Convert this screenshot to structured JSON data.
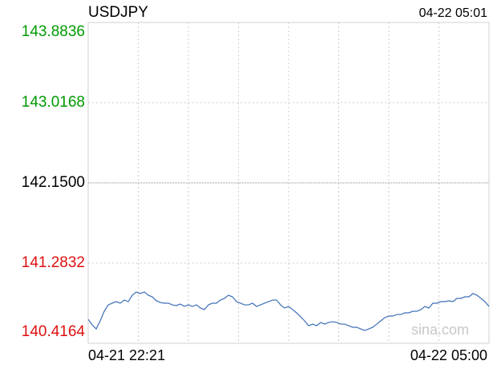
{
  "chart_data": {
    "type": "line",
    "title": "USDJPY",
    "timestamp": "04-22 05:01",
    "watermark": "sina.com",
    "categories": [
      "04-21 22:21",
      null,
      null,
      null,
      null,
      null,
      null,
      null,
      null,
      null,
      null,
      null,
      null,
      null,
      null,
      null,
      null,
      null,
      null,
      null,
      null,
      null,
      null,
      null,
      null,
      null,
      null,
      null,
      null,
      null,
      null,
      null,
      null,
      null,
      null,
      null,
      null,
      null,
      null,
      null,
      null,
      null,
      null,
      null,
      null,
      null,
      null,
      null,
      null,
      null,
      null,
      null,
      null,
      null,
      null,
      null,
      null,
      null,
      null,
      null,
      null,
      null,
      null,
      null,
      null,
      null,
      null,
      null,
      null,
      null,
      null,
      null,
      null,
      null,
      null,
      null,
      null,
      null,
      null,
      null,
      null,
      null,
      null,
      null,
      null,
      null,
      null,
      null,
      null,
      null,
      null,
      null,
      null,
      null,
      null,
      null,
      null,
      null,
      null,
      null,
      "04-22 05:00"
    ],
    "series": [
      {
        "name": "USDJPY",
        "color": "#3d6fb6",
        "values": [
          140.676,
          140.616,
          140.572,
          140.659,
          140.763,
          140.832,
          140.85,
          140.867,
          140.85,
          140.884,
          140.867,
          140.936,
          140.971,
          140.954,
          140.971,
          140.936,
          140.919,
          140.876,
          140.858,
          140.85,
          140.85,
          140.832,
          140.824,
          140.841,
          140.815,
          140.832,
          140.815,
          140.832,
          140.798,
          140.781,
          140.832,
          140.85,
          140.85,
          140.884,
          140.902,
          140.936,
          140.919,
          140.867,
          140.85,
          140.832,
          140.832,
          140.85,
          140.815,
          140.832,
          140.85,
          140.867,
          140.884,
          140.884,
          140.832,
          140.798,
          140.815,
          140.781,
          140.746,
          140.702,
          140.659,
          140.607,
          140.624,
          140.607,
          140.642,
          140.624,
          140.642,
          140.65,
          140.642,
          140.624,
          140.624,
          140.607,
          140.59,
          140.59,
          140.572,
          140.555,
          140.572,
          140.59,
          140.624,
          140.659,
          140.694,
          140.711,
          140.711,
          140.728,
          140.728,
          140.746,
          140.746,
          140.763,
          140.763,
          140.781,
          140.815,
          140.798,
          140.85,
          140.85,
          140.867,
          140.867,
          140.876,
          140.867,
          140.902,
          140.902,
          140.919,
          140.919,
          140.954,
          140.936,
          140.902,
          140.867,
          140.815
        ]
      }
    ],
    "ylim": [
      140.4164,
      143.8836
    ],
    "yticks": [
      140.4164,
      141.2832,
      {
        "value": 142.15,
        "label": "142.1500"
      },
      143.0168,
      143.8836
    ],
    "ytick_colors": [
      "#dd1111",
      "#dd1111",
      "#000000",
      "#009a00",
      "#009a00"
    ],
    "grid": true
  }
}
